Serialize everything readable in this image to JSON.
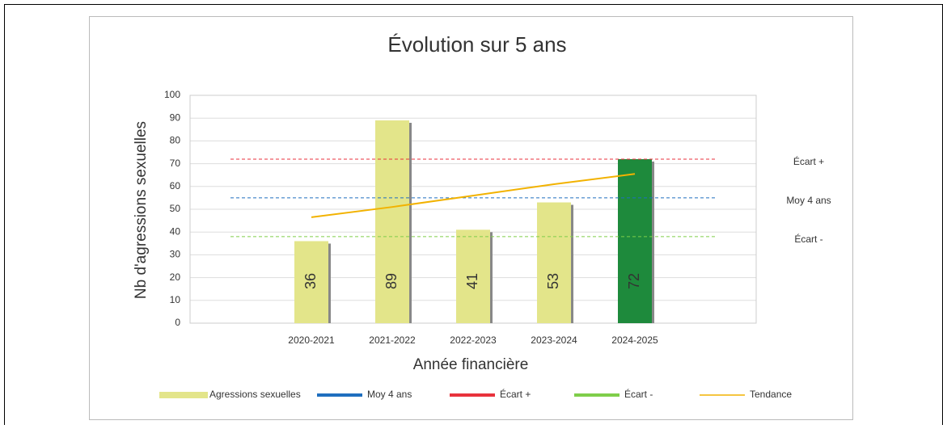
{
  "chart_data": {
    "type": "bar",
    "title": "Évolution sur 5 ans",
    "x_label": "Année financière",
    "y_label": "Nb d'agressions sexuelles",
    "categories": [
      null,
      "2020-2021",
      "2021-2022",
      "2022-2023",
      "2023-2024",
      "2024-2025",
      null
    ],
    "series": [
      {
        "name": "Agressions sexuelles",
        "type": "bar",
        "color": "#e3e58a",
        "colors": [
          null,
          "#e3e58a",
          "#e3e58a",
          "#e3e58a",
          "#e3e58a",
          "#1e8a3c",
          null
        ],
        "values": [
          null,
          36,
          89,
          41,
          53,
          72,
          null
        ]
      },
      {
        "name": "Moy 4 ans",
        "type": "line",
        "dashed": true,
        "color": "#1f6fbf",
        "values": [
          55,
          55,
          55,
          55,
          55,
          55,
          55
        ]
      },
      {
        "name": "Écart +",
        "type": "line",
        "dashed": true,
        "color": "#e8323c",
        "values": [
          72,
          72,
          72,
          72,
          72,
          72,
          72
        ]
      },
      {
        "name": "Écart -",
        "type": "line",
        "dashed": true,
        "color": "#7fce4a",
        "values": [
          38,
          38,
          38,
          38,
          38,
          38,
          38
        ]
      },
      {
        "name": "Tendance",
        "type": "line",
        "dashed": false,
        "color": "#f2b200",
        "values": [
          null,
          46.5,
          51,
          56,
          61,
          65.5,
          null
        ]
      }
    ],
    "annotations": [
      {
        "text": "Écart +",
        "y": 72
      },
      {
        "text": "Moy 4 ans",
        "y": 55
      },
      {
        "text": "Écart -",
        "y": 38
      }
    ],
    "ylim": [
      0,
      100
    ],
    "yticks": [
      0,
      10,
      20,
      30,
      40,
      50,
      60,
      70,
      80,
      90,
      100
    ],
    "grid": true,
    "legend": "bottom"
  }
}
